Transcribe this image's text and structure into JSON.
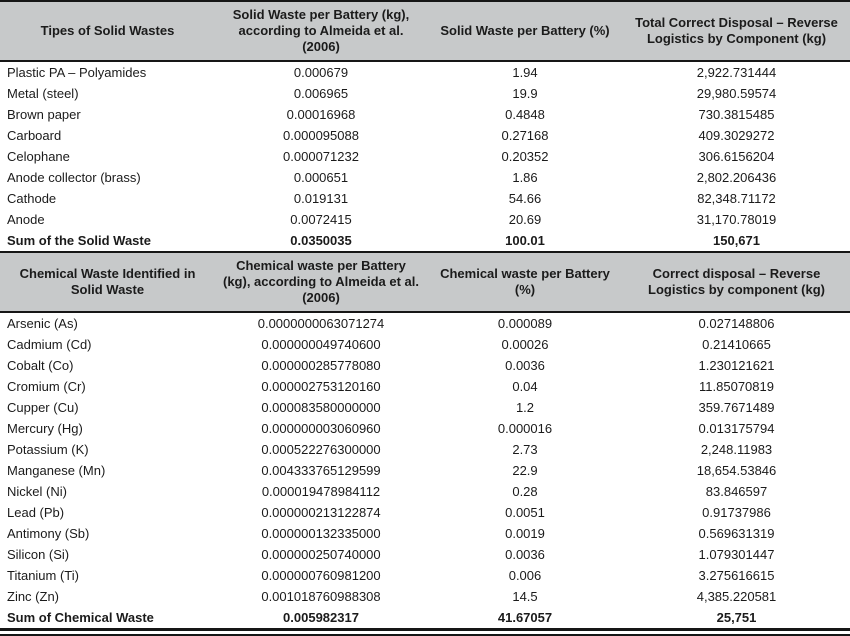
{
  "colors": {
    "header_bg": "#c7c9ca",
    "rule": "#161616",
    "text": "#1b1b1b",
    "background": "#ffffff"
  },
  "tables": [
    {
      "name": "solid-waste-table",
      "header": [
        "Tipes of Solid Wastes",
        "Solid Waste per Battery (kg),\naccording to Almeida et al.\n(2006)",
        "Solid Waste per Battery (%)",
        "Total Correct Disposal – Reverse\nLogistics by Component (kg)"
      ],
      "rows": [
        {
          "bold": false,
          "cells": [
            "Plastic PA – Polyamides",
            "0.000679",
            "1.94",
            "2,922.731444"
          ]
        },
        {
          "bold": false,
          "cells": [
            "Metal (steel)",
            "0.006965",
            "19.9",
            "29,980.59574"
          ]
        },
        {
          "bold": false,
          "cells": [
            "Brown paper",
            "0.00016968",
            "0.4848",
            "730.3815485"
          ]
        },
        {
          "bold": false,
          "cells": [
            "Carboard",
            "0.000095088",
            "0.27168",
            "409.3029272"
          ]
        },
        {
          "bold": false,
          "cells": [
            "Celophane",
            "0.000071232",
            "0.20352",
            "306.6156204"
          ]
        },
        {
          "bold": false,
          "cells": [
            "Anode collector (brass)",
            "0.000651",
            "1.86",
            "2,802.206436"
          ]
        },
        {
          "bold": false,
          "cells": [
            "Cathode",
            "0.019131",
            "54.66",
            "82,348.71172"
          ]
        },
        {
          "bold": false,
          "cells": [
            "Anode",
            "0.0072415",
            "20.69",
            "31,170.78019"
          ]
        },
        {
          "bold": true,
          "cells": [
            "Sum of the Solid Waste",
            "0.0350035",
            "100.01",
            "150,671"
          ]
        }
      ]
    },
    {
      "name": "chemical-waste-table",
      "header": [
        "Chemical Waste Identified in\nSolid Waste",
        "Chemical waste per Battery\n(kg), according to Almeida et al.\n(2006)",
        "Chemical waste per Battery (%)",
        "Correct disposal – Reverse\nLogistics by component (kg)"
      ],
      "rows": [
        {
          "bold": false,
          "cells": [
            "Arsenic (As)",
            "0.0000000063071274",
            "0.000089",
            "0.027148806"
          ]
        },
        {
          "bold": false,
          "cells": [
            "Cadmium (Cd)",
            "0.000000049740600",
            "0.00026",
            "0.21410665"
          ]
        },
        {
          "bold": false,
          "cells": [
            "Cobalt (Co)",
            "0.000000285778080",
            "0.0036",
            "1.230121621"
          ]
        },
        {
          "bold": false,
          "cells": [
            "Cromium (Cr)",
            "0.000002753120160",
            "0.04",
            "11.85070819"
          ]
        },
        {
          "bold": false,
          "cells": [
            "Cupper (Cu)",
            "0.000083580000000",
            "1.2",
            "359.7671489"
          ]
        },
        {
          "bold": false,
          "cells": [
            "Mercury (Hg)",
            "0.000000003060960",
            "0.000016",
            "0.013175794"
          ]
        },
        {
          "bold": false,
          "cells": [
            "Potassium (K)",
            "0.000522276300000",
            "2.73",
            "2,248.11983"
          ]
        },
        {
          "bold": false,
          "cells": [
            "Manganese (Mn)",
            "0.004333765129599",
            "22.9",
            "18,654.53846"
          ]
        },
        {
          "bold": false,
          "cells": [
            "Nickel (Ni)",
            "0.000019478984112",
            "0.28",
            "83.846597"
          ]
        },
        {
          "bold": false,
          "cells": [
            "Lead (Pb)",
            "0.000000213122874",
            "0.0051",
            "0.91737986"
          ]
        },
        {
          "bold": false,
          "cells": [
            "Antimony (Sb)",
            "0.000000132335000",
            "0.0019",
            "0.569631319"
          ]
        },
        {
          "bold": false,
          "cells": [
            "Silicon (Si)",
            "0.000000250740000",
            "0.0036",
            "1.079301447"
          ]
        },
        {
          "bold": false,
          "cells": [
            "Titanium (Ti)",
            "0.000000760981200",
            "0.006",
            "3.275616615"
          ]
        },
        {
          "bold": false,
          "cells": [
            "Zinc (Zn)",
            "0.001018760988308",
            "14.5",
            "4,385.220581"
          ]
        },
        {
          "bold": true,
          "cells": [
            "Sum of Chemical Waste",
            "0.005982317",
            "41.67057",
            "25,751"
          ]
        }
      ]
    }
  ]
}
